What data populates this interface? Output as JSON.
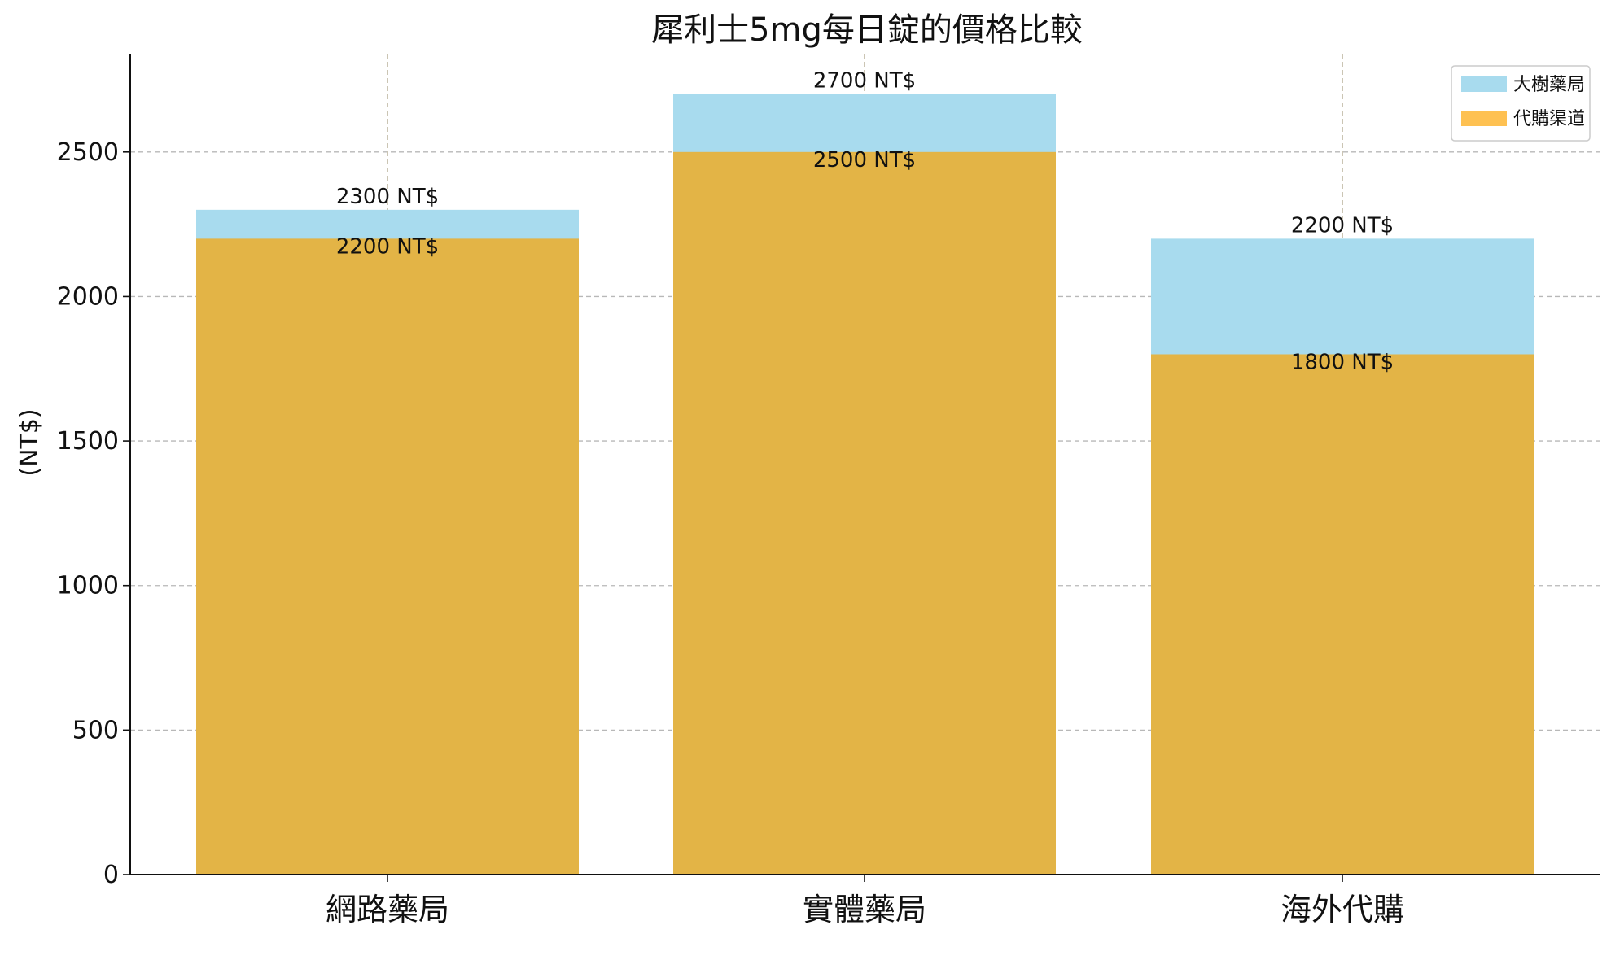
{
  "chart_data": {
    "type": "bar",
    "title": "犀利士5mg每日錠的價格比較",
    "xlabel": "",
    "ylabel": "(NT$)",
    "categories": [
      "網路藥局",
      "實體藥局",
      "海外代購"
    ],
    "series": [
      {
        "name": "大樹藥局",
        "values": [
          2300,
          2700,
          2200
        ],
        "labels": [
          "2300 NT$",
          "2700 NT$",
          "2200 NT$"
        ],
        "color": "#a8dbee"
      },
      {
        "name": "代購渠道",
        "values": [
          2200,
          2500,
          1800
        ],
        "labels": [
          "2200 NT$",
          "2500 NT$",
          "1800 NT$"
        ],
        "color": "#e3b446"
      }
    ],
    "legend_colors": [
      "#a8dbee",
      "#fec152"
    ],
    "ylim": [
      0,
      2840
    ],
    "yticks": [
      0,
      500,
      1000,
      1500,
      2000,
      2500
    ],
    "ytick_labels": [
      "0",
      "500",
      "1000",
      "1500",
      "2000",
      "2500"
    ],
    "grid": true,
    "legend_position": "top-right"
  }
}
